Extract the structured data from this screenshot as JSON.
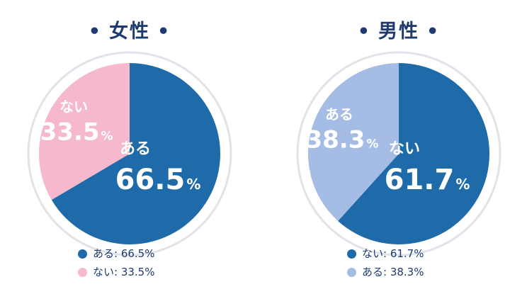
{
  "chart_data": [
    {
      "type": "pie",
      "title": "女性",
      "categories": [
        "ある",
        "ない"
      ],
      "values": [
        66.5,
        33.5
      ],
      "value_texts": [
        "66.5",
        "33.5"
      ],
      "unit": "%",
      "colors": [
        "#1f6aa8",
        "#f5b8cc"
      ],
      "legend_texts": [
        "ある: 66.5%",
        "ない: 33.5%"
      ],
      "legend_position": "bottom"
    },
    {
      "type": "pie",
      "title": "男性",
      "categories": [
        "ない",
        "ある"
      ],
      "values": [
        61.7,
        38.3
      ],
      "value_texts": [
        "61.7",
        "38.3"
      ],
      "unit": "%",
      "colors": [
        "#1f6aa8",
        "#a5bde4"
      ],
      "legend_texts": [
        "ない: 61.7%",
        "ある: 38.3%"
      ],
      "legend_position": "bottom"
    }
  ],
  "title_dot": "•",
  "colors": {
    "title": "#1e3a6e",
    "ring": "#dfe3ea",
    "background": "#ffffff"
  }
}
